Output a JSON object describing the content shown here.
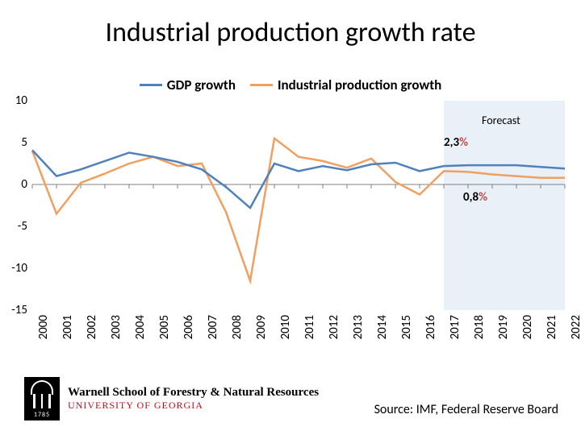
{
  "title": "Industrial production growth rate",
  "legend": [
    {
      "label": "GDP growth",
      "color": "#4f81bd"
    },
    {
      "label": "Industrial production growth",
      "color": "#f0a060"
    }
  ],
  "chart": {
    "type": "line",
    "years": [
      2000,
      2001,
      2002,
      2003,
      2004,
      2005,
      2006,
      2007,
      2008,
      2009,
      2010,
      2011,
      2012,
      2013,
      2014,
      2015,
      2016,
      2017,
      2018,
      2019,
      2020,
      2021,
      2022
    ],
    "ylim": [
      -15,
      10
    ],
    "ytick_step": 5,
    "yticks": [
      10,
      5,
      0,
      -5,
      -10,
      -15
    ],
    "grid_color": "#bfbfbf",
    "axis_color": "#808080",
    "background_color": "#ffffff",
    "line_width": 2.5,
    "axis_label_fontsize": 15,
    "series": {
      "gdp": {
        "color": "#4f81bd",
        "values": [
          4.1,
          1.0,
          1.8,
          2.8,
          3.8,
          3.3,
          2.7,
          1.8,
          -0.3,
          -2.8,
          2.5,
          1.6,
          2.2,
          1.7,
          2.4,
          2.6,
          1.6,
          2.2,
          2.3,
          2.3,
          2.3,
          2.1,
          1.9
        ]
      },
      "ip": {
        "color": "#f0a060",
        "values": [
          4.0,
          -3.5,
          0.2,
          1.3,
          2.5,
          3.3,
          2.2,
          2.5,
          -3.3,
          -11.5,
          5.5,
          3.3,
          2.8,
          2.0,
          3.1,
          0.3,
          -1.2,
          1.6,
          1.5,
          1.2,
          1.0,
          0.8,
          0.8
        ]
      }
    },
    "forecast": {
      "start_year": 2017,
      "label": "Forecast",
      "band_color": "rgba(79,129,189,0.12)"
    },
    "annotations": [
      {
        "text": "2,3",
        "suffix": "%",
        "year": 2017,
        "y": 5,
        "suffix_color": "#c0504d"
      },
      {
        "text": "0,8",
        "suffix": "%",
        "year": 2017.8,
        "y": -1.5,
        "suffix_color": "#c0504d"
      }
    ]
  },
  "logo": {
    "line1": "Warnell School of Forestry & Natural Resources",
    "line2": "UNIVERSITY OF GEORGIA",
    "year": "1785"
  },
  "source": "Source: IMF, Federal Reserve Board"
}
